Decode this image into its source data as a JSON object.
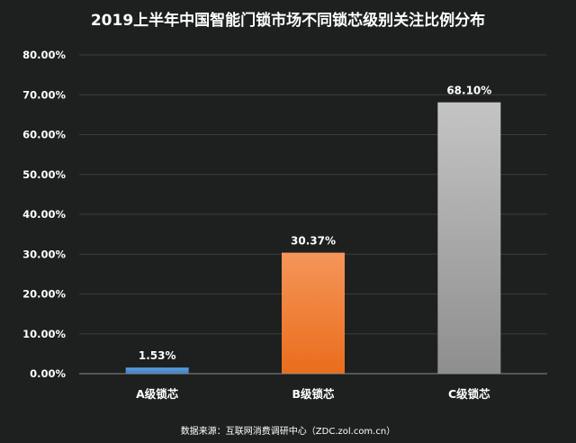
{
  "chart_data": {
    "type": "bar",
    "title": "2019上半年中国智能门锁市场不同锁芯级别关注比例分布",
    "categories": [
      "A级锁芯",
      "B级锁芯",
      "C级锁芯"
    ],
    "values": [
      1.53,
      30.37,
      68.1
    ],
    "data_labels": [
      "1.53%",
      "30.37%",
      "68.10%"
    ],
    "ylim": [
      0,
      80
    ],
    "yticks": [
      0,
      10,
      20,
      30,
      40,
      50,
      60,
      70,
      80
    ],
    "ytick_labels": [
      "0.00%",
      "10.00%",
      "20.00%",
      "30.00%",
      "40.00%",
      "50.00%",
      "60.00%",
      "70.00%",
      "80.00%"
    ],
    "grid": true,
    "colors": [
      {
        "top": "#5b9fe0",
        "bottom": "#3f7fc8"
      },
      {
        "top": "#f5955a",
        "bottom": "#ea6d1c"
      },
      {
        "top": "#c4c4c4",
        "bottom": "#8e8e8e"
      }
    ]
  },
  "source": "数据来源：互联网消费调研中心（ZDC.zol.com.cn）"
}
